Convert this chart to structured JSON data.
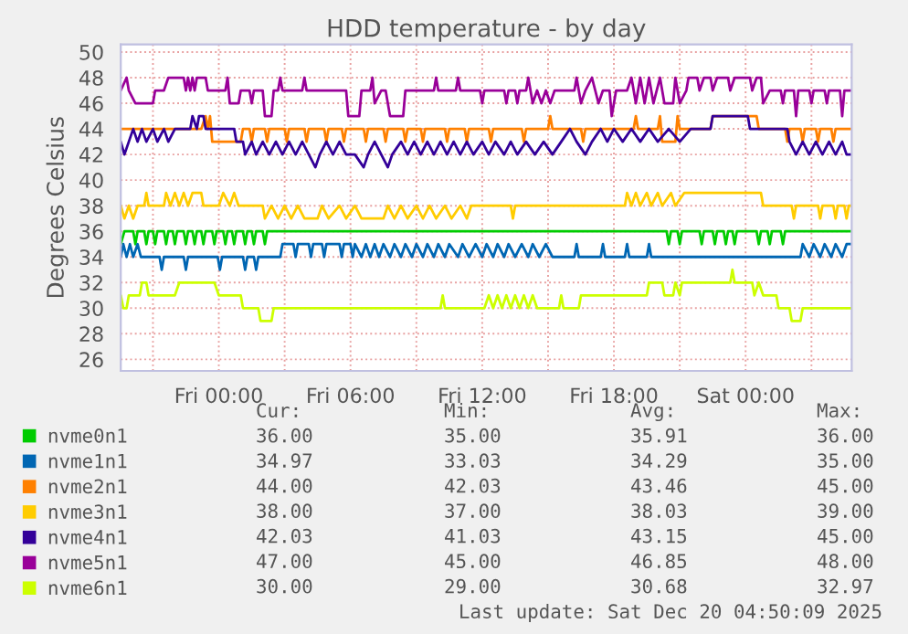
{
  "chart_data": {
    "type": "line",
    "title": "HDD temperature - by day",
    "ylabel": "Degrees Celsius",
    "xlim": [
      "2025-12-18T19:32",
      "2025-12-20T04:50"
    ],
    "ylim": [
      25.1,
      50.6
    ],
    "xticks": [
      {
        "value": "2025-12-18T21:00",
        "label": null
      },
      {
        "value": "2025-12-19T00:00",
        "label": "Fri 00:00"
      },
      {
        "value": "2025-12-19T03:00",
        "label": null
      },
      {
        "value": "2025-12-19T06:00",
        "label": "Fri 06:00"
      },
      {
        "value": "2025-12-19T09:00",
        "label": null
      },
      {
        "value": "2025-12-19T12:00",
        "label": "Fri 12:00"
      },
      {
        "value": "2025-12-19T15:00",
        "label": null
      },
      {
        "value": "2025-12-19T18:00",
        "label": "Fri 18:00"
      },
      {
        "value": "2025-12-19T21:00",
        "label": null
      },
      {
        "value": "2025-12-20T00:00",
        "label": "Sat 00:00"
      },
      {
        "value": "2025-12-20T03:00",
        "label": null
      }
    ],
    "yticks": [
      26,
      28,
      30,
      32,
      34,
      36,
      38,
      40,
      42,
      44,
      46,
      48,
      50
    ],
    "grid": true,
    "legend": "bottom",
    "marker": "none",
    "line_style": "solid",
    "series": [
      {
        "name": "nvme0n1",
        "color": "#00cc00",
        "x": [
          "2025-12-18T19:32",
          "2025-12-18T19:42",
          "2025-12-18T20:06",
          "2025-12-18T20:12",
          "2025-12-18T20:18",
          "2025-12-18T20:36",
          "2025-12-18T20:42",
          "2025-12-18T20:48",
          "2025-12-18T21:00",
          "2025-12-18T21:06",
          "2025-12-18T21:12",
          "2025-12-18T21:30",
          "2025-12-18T21:36",
          "2025-12-18T21:42",
          "2025-12-18T21:54",
          "2025-12-18T22:00",
          "2025-12-18T22:06",
          "2025-12-18T22:24",
          "2025-12-18T22:30",
          "2025-12-18T22:36",
          "2025-12-18T22:48",
          "2025-12-18T22:54",
          "2025-12-18T23:00",
          "2025-12-18T23:12",
          "2025-12-18T23:18",
          "2025-12-18T23:24",
          "2025-12-18T23:42",
          "2025-12-18T23:48",
          "2025-12-18T23:54",
          "2025-12-19T00:12",
          "2025-12-19T00:18",
          "2025-12-19T00:24",
          "2025-12-19T00:36",
          "2025-12-19T00:42",
          "2025-12-19T00:48",
          "2025-12-19T01:06",
          "2025-12-19T01:12",
          "2025-12-19T01:18",
          "2025-12-19T01:30",
          "2025-12-19T01:36",
          "2025-12-19T01:42",
          "2025-12-19T02:00",
          "2025-12-19T02:06",
          "2025-12-19T02:12",
          "2025-12-19T20:24",
          "2025-12-19T20:30",
          "2025-12-19T20:36",
          "2025-12-19T20:54",
          "2025-12-19T21:00",
          "2025-12-19T21:06",
          "2025-12-19T21:54",
          "2025-12-19T22:00",
          "2025-12-19T22:06",
          "2025-12-19T22:30",
          "2025-12-19T22:36",
          "2025-12-19T22:42",
          "2025-12-19T23:00",
          "2025-12-19T23:06",
          "2025-12-19T23:12",
          "2025-12-19T23:24",
          "2025-12-19T23:30",
          "2025-12-19T23:36",
          "2025-12-20T00:30",
          "2025-12-20T00:36",
          "2025-12-20T00:42",
          "2025-12-20T01:00",
          "2025-12-20T01:06",
          "2025-12-20T01:12",
          "2025-12-20T01:36",
          "2025-12-20T01:42",
          "2025-12-20T01:48",
          "2025-12-20T04:50"
        ],
        "values": [
          35,
          36,
          36,
          35,
          36,
          36,
          35,
          36,
          36,
          35,
          36,
          36,
          35,
          36,
          36,
          35,
          36,
          36,
          35,
          36,
          36,
          35,
          36,
          36,
          35,
          36,
          36,
          35,
          36,
          36,
          35,
          36,
          36,
          35,
          36,
          36,
          35,
          36,
          36,
          35,
          36,
          36,
          35,
          36,
          36,
          35,
          36,
          36,
          35,
          36,
          36,
          35,
          36,
          36,
          35,
          36,
          36,
          35,
          36,
          36,
          35,
          36,
          36,
          35,
          36,
          36,
          35,
          36,
          36,
          35,
          36,
          36
        ]
      },
      {
        "name": "nvme1n1",
        "color": "#0066b3",
        "x": [
          "2025-12-18T19:32",
          "2025-12-18T19:39",
          "2025-12-18T19:48",
          "2025-12-18T19:57",
          "2025-12-18T20:06",
          "2025-12-18T20:18",
          "2025-12-18T20:27",
          "2025-12-18T21:18",
          "2025-12-18T21:24",
          "2025-12-18T21:30",
          "2025-12-18T22:24",
          "2025-12-18T22:30",
          "2025-12-18T22:36",
          "2025-12-18T23:57",
          "2025-12-19T00:03",
          "2025-12-19T00:09",
          "2025-12-19T01:06",
          "2025-12-19T01:12",
          "2025-12-19T01:18",
          "2025-12-19T01:36",
          "2025-12-19T01:42",
          "2025-12-19T01:48",
          "2025-12-19T02:48",
          "2025-12-19T02:54",
          "2025-12-19T03:24",
          "2025-12-19T03:30",
          "2025-12-19T03:36",
          "2025-12-19T04:06",
          "2025-12-19T04:12",
          "2025-12-19T04:18",
          "2025-12-19T04:42",
          "2025-12-19T04:48",
          "2025-12-19T04:54",
          "2025-12-19T05:30",
          "2025-12-19T05:36",
          "2025-12-19T05:42",
          "2025-12-19T06:00",
          "2025-12-19T06:06",
          "2025-12-19T06:12",
          "2025-12-19T06:30",
          "2025-12-19T06:42",
          "2025-12-19T06:54",
          "2025-12-19T07:06",
          "2025-12-19T07:18",
          "2025-12-19T07:30",
          "2025-12-19T07:48",
          "2025-12-19T08:00",
          "2025-12-19T08:18",
          "2025-12-19T08:30",
          "2025-12-19T08:48",
          "2025-12-19T09:00",
          "2025-12-19T09:18",
          "2025-12-19T09:30",
          "2025-12-19T09:48",
          "2025-12-19T10:00",
          "2025-12-19T10:18",
          "2025-12-19T10:30",
          "2025-12-19T10:54",
          "2025-12-19T11:06",
          "2025-12-19T11:24",
          "2025-12-19T11:42",
          "2025-12-19T12:00",
          "2025-12-19T12:12",
          "2025-12-19T12:30",
          "2025-12-19T12:42",
          "2025-12-19T13:00",
          "2025-12-19T13:12",
          "2025-12-19T13:30",
          "2025-12-19T13:48",
          "2025-12-19T14:06",
          "2025-12-19T14:18",
          "2025-12-19T14:36",
          "2025-12-19T14:54",
          "2025-12-19T15:12",
          "2025-12-19T16:12",
          "2025-12-19T16:18",
          "2025-12-19T16:24",
          "2025-12-19T17:24",
          "2025-12-19T17:30",
          "2025-12-19T17:36",
          "2025-12-19T18:30",
          "2025-12-19T18:36",
          "2025-12-19T18:42",
          "2025-12-19T19:30",
          "2025-12-19T19:36",
          "2025-12-19T19:42",
          "2025-12-20T02:30",
          "2025-12-20T02:36",
          "2025-12-20T02:54",
          "2025-12-20T03:06",
          "2025-12-20T03:24",
          "2025-12-20T03:36",
          "2025-12-20T03:54",
          "2025-12-20T04:06",
          "2025-12-20T04:24",
          "2025-12-20T04:36",
          "2025-12-20T04:50"
        ],
        "values": [
          34,
          35,
          34,
          35,
          34,
          35,
          34,
          34,
          33,
          34,
          34,
          33,
          34,
          34,
          33,
          34,
          34,
          33,
          34,
          34,
          33,
          34,
          34,
          35,
          35,
          34,
          35,
          35,
          34,
          35,
          35,
          34,
          35,
          35,
          34,
          35,
          35,
          34,
          35,
          34,
          35,
          34,
          35,
          34,
          35,
          34,
          35,
          34,
          35,
          34,
          35,
          34,
          35,
          34,
          35,
          34,
          35,
          34,
          35,
          34,
          35,
          34,
          35,
          34,
          35,
          34,
          35,
          34,
          35,
          34,
          35,
          34,
          35,
          34,
          34,
          35,
          34,
          34,
          35,
          34,
          34,
          35,
          34,
          34,
          35,
          34,
          34,
          35,
          34,
          35,
          34,
          35,
          34,
          35,
          34,
          35,
          35
        ]
      },
      {
        "name": "nvme2n1",
        "color": "#ff8000",
        "x": [
          "2025-12-18T19:32",
          "2025-12-18T23:12",
          "2025-12-18T23:24",
          "2025-12-18T23:30",
          "2025-12-18T23:36",
          "2025-12-18T23:42",
          "2025-12-19T01:00",
          "2025-12-19T01:06",
          "2025-12-19T01:24",
          "2025-12-19T01:30",
          "2025-12-19T01:36",
          "2025-12-19T02:06",
          "2025-12-19T02:12",
          "2025-12-19T02:18",
          "2025-12-19T03:00",
          "2025-12-19T03:06",
          "2025-12-19T03:12",
          "2025-12-19T03:54",
          "2025-12-19T04:00",
          "2025-12-19T04:06",
          "2025-12-19T04:48",
          "2025-12-19T04:54",
          "2025-12-19T05:00",
          "2025-12-19T05:36",
          "2025-12-19T05:42",
          "2025-12-19T05:48",
          "2025-12-19T06:36",
          "2025-12-19T06:42",
          "2025-12-19T06:48",
          "2025-12-19T07:30",
          "2025-12-19T07:36",
          "2025-12-19T07:42",
          "2025-12-19T08:24",
          "2025-12-19T08:30",
          "2025-12-19T08:36",
          "2025-12-19T09:12",
          "2025-12-19T09:18",
          "2025-12-19T09:24",
          "2025-12-19T10:18",
          "2025-12-19T10:24",
          "2025-12-19T10:30",
          "2025-12-19T11:12",
          "2025-12-19T11:18",
          "2025-12-19T11:24",
          "2025-12-19T12:18",
          "2025-12-19T12:24",
          "2025-12-19T12:30",
          "2025-12-19T13:48",
          "2025-12-19T13:54",
          "2025-12-19T14:00",
          "2025-12-19T15:00",
          "2025-12-19T15:06",
          "2025-12-19T15:12",
          "2025-12-19T16:30",
          "2025-12-19T16:36",
          "2025-12-19T16:42",
          "2025-12-19T18:54",
          "2025-12-19T19:00",
          "2025-12-19T19:06",
          "2025-12-19T20:00",
          "2025-12-19T20:06",
          "2025-12-19T20:12",
          "2025-12-19T20:48",
          "2025-12-19T20:54",
          "2025-12-19T21:00",
          "2025-12-19T22:24",
          "2025-12-19T22:30",
          "2025-12-20T00:30",
          "2025-12-20T00:36",
          "2025-12-20T01:48",
          "2025-12-20T01:54",
          "2025-12-20T02:00",
          "2025-12-20T02:30",
          "2025-12-20T02:36",
          "2025-12-20T02:42",
          "2025-12-20T03:12",
          "2025-12-20T03:18",
          "2025-12-20T03:24",
          "2025-12-20T03:54",
          "2025-12-20T04:00",
          "2025-12-20T04:06",
          "2025-12-20T04:50"
        ],
        "values": [
          44,
          44,
          45,
          44,
          45,
          43,
          43,
          44,
          44,
          43,
          44,
          44,
          43,
          44,
          44,
          43,
          44,
          44,
          43,
          44,
          44,
          43,
          44,
          44,
          43,
          44,
          44,
          43,
          44,
          44,
          43,
          44,
          44,
          43,
          44,
          44,
          43,
          44,
          44,
          43,
          44,
          44,
          43,
          44,
          44,
          43,
          44,
          44,
          43,
          44,
          44,
          45,
          44,
          44,
          43,
          44,
          44,
          45,
          44,
          44,
          45,
          43,
          43,
          45,
          44,
          44,
          45,
          45,
          44,
          44,
          43,
          44,
          44,
          43,
          44,
          44,
          43,
          44,
          44,
          43,
          44,
          44
        ]
      },
      {
        "name": "nvme3n1",
        "color": "#ffcc00",
        "x": [
          "2025-12-18T19:32",
          "2025-12-18T19:42",
          "2025-12-18T19:54",
          "2025-12-18T20:06",
          "2025-12-18T20:18",
          "2025-12-18T20:36",
          "2025-12-18T20:42",
          "2025-12-18T20:48",
          "2025-12-18T21:30",
          "2025-12-18T21:36",
          "2025-12-18T21:48",
          "2025-12-18T22:00",
          "2025-12-18T22:12",
          "2025-12-18T22:24",
          "2025-12-18T22:36",
          "2025-12-18T22:48",
          "2025-12-18T23:12",
          "2025-12-18T23:18",
          "2025-12-19T00:00",
          "2025-12-19T00:12",
          "2025-12-19T00:30",
          "2025-12-19T00:42",
          "2025-12-19T00:54",
          "2025-12-19T02:00",
          "2025-12-19T02:06",
          "2025-12-19T02:24",
          "2025-12-19T02:42",
          "2025-12-19T03:00",
          "2025-12-19T03:18",
          "2025-12-19T03:36",
          "2025-12-19T03:54",
          "2025-12-19T04:30",
          "2025-12-19T04:42",
          "2025-12-19T05:00",
          "2025-12-19T05:30",
          "2025-12-19T05:48",
          "2025-12-19T06:12",
          "2025-12-19T06:30",
          "2025-12-19T07:30",
          "2025-12-19T07:42",
          "2025-12-19T08:00",
          "2025-12-19T08:18",
          "2025-12-19T08:36",
          "2025-12-19T09:00",
          "2025-12-19T09:18",
          "2025-12-19T09:36",
          "2025-12-19T09:54",
          "2025-12-19T10:18",
          "2025-12-19T10:36",
          "2025-12-19T11:00",
          "2025-12-19T11:18",
          "2025-12-19T11:30",
          "2025-12-19T13:18",
          "2025-12-19T13:24",
          "2025-12-19T13:30",
          "2025-12-19T18:30",
          "2025-12-19T18:36",
          "2025-12-19T18:48",
          "2025-12-19T19:00",
          "2025-12-19T19:12",
          "2025-12-19T19:30",
          "2025-12-19T19:42",
          "2025-12-19T20:00",
          "2025-12-19T20:12",
          "2025-12-19T20:36",
          "2025-12-19T20:48",
          "2025-12-19T21:12",
          "2025-12-20T00:42",
          "2025-12-20T00:48",
          "2025-12-20T02:06",
          "2025-12-20T02:12",
          "2025-12-20T02:18",
          "2025-12-20T03:18",
          "2025-12-20T03:24",
          "2025-12-20T03:30",
          "2025-12-20T04:00",
          "2025-12-20T04:06",
          "2025-12-20T04:12",
          "2025-12-20T04:30",
          "2025-12-20T04:36",
          "2025-12-20T04:42",
          "2025-12-20T04:50"
        ],
        "values": [
          38,
          37,
          38,
          37,
          38,
          38,
          39,
          38,
          38,
          39,
          38,
          39,
          38,
          39,
          38,
          39,
          39,
          38,
          38,
          39,
          38,
          39,
          38,
          38,
          37,
          38,
          37,
          38,
          37,
          38,
          37,
          37,
          38,
          37,
          38,
          37,
          38,
          37,
          37,
          38,
          37,
          38,
          37,
          38,
          37,
          38,
          37,
          38,
          37,
          38,
          37,
          38,
          38,
          37,
          38,
          38,
          39,
          38,
          39,
          38,
          39,
          38,
          39,
          38,
          39,
          38,
          39,
          39,
          38,
          38,
          37,
          38,
          38,
          37,
          38,
          38,
          37,
          38,
          38,
          37,
          38,
          38
        ]
      },
      {
        "name": "nvme4n1",
        "color": "#330099",
        "x": [
          "2025-12-18T19:32",
          "2025-12-18T19:42",
          "2025-12-18T19:54",
          "2025-12-18T20:06",
          "2025-12-18T20:18",
          "2025-12-18T20:30",
          "2025-12-18T20:42",
          "2025-12-18T21:00",
          "2025-12-18T21:12",
          "2025-12-18T21:30",
          "2025-12-18T21:42",
          "2025-12-18T22:00",
          "2025-12-18T22:42",
          "2025-12-18T22:48",
          "2025-12-18T23:00",
          "2025-12-18T23:06",
          "2025-12-18T23:18",
          "2025-12-18T23:24",
          "2025-12-19T00:42",
          "2025-12-19T00:48",
          "2025-12-19T01:06",
          "2025-12-19T01:12",
          "2025-12-19T01:30",
          "2025-12-19T01:42",
          "2025-12-19T02:00",
          "2025-12-19T02:18",
          "2025-12-19T02:36",
          "2025-12-19T02:54",
          "2025-12-19T03:12",
          "2025-12-19T03:30",
          "2025-12-19T03:48",
          "2025-12-19T04:06",
          "2025-12-19T04:24",
          "2025-12-19T04:36",
          "2025-12-19T04:54",
          "2025-12-19T05:12",
          "2025-12-19T05:30",
          "2025-12-19T05:48",
          "2025-12-19T06:12",
          "2025-12-19T06:36",
          "2025-12-19T06:48",
          "2025-12-19T07:06",
          "2025-12-19T07:24",
          "2025-12-19T07:42",
          "2025-12-19T07:54",
          "2025-12-19T08:18",
          "2025-12-19T08:36",
          "2025-12-19T08:54",
          "2025-12-19T09:12",
          "2025-12-19T09:30",
          "2025-12-19T09:48",
          "2025-12-19T10:06",
          "2025-12-19T10:24",
          "2025-12-19T10:42",
          "2025-12-19T11:00",
          "2025-12-19T11:18",
          "2025-12-19T11:36",
          "2025-12-19T12:00",
          "2025-12-19T12:18",
          "2025-12-19T12:36",
          "2025-12-19T13:00",
          "2025-12-19T13:18",
          "2025-12-19T13:36",
          "2025-12-19T14:00",
          "2025-12-19T14:24",
          "2025-12-19T14:48",
          "2025-12-19T15:12",
          "2025-12-19T15:36",
          "2025-12-19T16:00",
          "2025-12-19T16:18",
          "2025-12-19T16:42",
          "2025-12-19T17:00",
          "2025-12-19T17:24",
          "2025-12-19T17:42",
          "2025-12-19T18:00",
          "2025-12-19T18:24",
          "2025-12-19T18:48",
          "2025-12-19T19:12",
          "2025-12-19T19:36",
          "2025-12-19T20:00",
          "2025-12-19T20:30",
          "2025-12-19T21:00",
          "2025-12-19T21:30",
          "2025-12-19T22:24",
          "2025-12-19T22:30",
          "2025-12-20T00:06",
          "2025-12-20T00:12",
          "2025-12-20T01:54",
          "2025-12-20T02:00",
          "2025-12-20T02:18",
          "2025-12-20T02:36",
          "2025-12-20T02:54",
          "2025-12-20T03:12",
          "2025-12-20T03:30",
          "2025-12-20T03:48",
          "2025-12-20T04:06",
          "2025-12-20T04:24",
          "2025-12-20T04:36",
          "2025-12-20T04:50"
        ],
        "values": [
          43,
          42,
          43,
          44,
          43,
          44,
          43,
          44,
          43,
          44,
          43,
          44,
          44,
          45,
          44,
          45,
          45,
          44,
          44,
          43,
          43,
          42,
          43,
          42,
          43,
          42,
          43,
          42,
          43,
          42,
          43,
          42,
          41,
          42,
          43,
          42,
          43,
          42,
          42,
          41,
          42,
          43,
          42,
          41,
          42,
          43,
          42,
          43,
          42,
          43,
          42,
          43,
          42,
          43,
          42,
          43,
          42,
          43,
          42,
          43,
          42,
          43,
          42,
          43,
          42,
          43,
          42,
          43,
          44,
          43,
          42,
          43,
          44,
          43,
          44,
          43,
          44,
          43,
          44,
          43,
          44,
          43,
          44,
          44,
          45,
          45,
          44,
          44,
          43,
          42,
          43,
          42,
          43,
          42,
          43,
          42,
          43,
          42,
          42
        ]
      },
      {
        "name": "nvme5n1",
        "color": "#990099",
        "x": [
          "2025-12-18T19:32",
          "2025-12-18T19:48",
          "2025-12-18T19:54",
          "2025-12-18T20:12",
          "2025-12-18T21:00",
          "2025-12-18T21:06",
          "2025-12-18T21:30",
          "2025-12-18T21:42",
          "2025-12-18T22:24",
          "2025-12-18T22:30",
          "2025-12-18T22:36",
          "2025-12-18T22:42",
          "2025-12-18T22:48",
          "2025-12-18T22:54",
          "2025-12-18T23:00",
          "2025-12-18T23:24",
          "2025-12-18T23:30",
          "2025-12-19T00:18",
          "2025-12-19T00:24",
          "2025-12-19T00:30",
          "2025-12-19T00:54",
          "2025-12-19T01:00",
          "2025-12-19T01:24",
          "2025-12-19T01:30",
          "2025-12-19T01:36",
          "2025-12-19T02:00",
          "2025-12-19T02:06",
          "2025-12-19T02:24",
          "2025-12-19T02:30",
          "2025-12-19T02:42",
          "2025-12-19T02:48",
          "2025-12-19T02:54",
          "2025-12-19T03:48",
          "2025-12-19T03:54",
          "2025-12-19T04:00",
          "2025-12-19T05:48",
          "2025-12-19T05:54",
          "2025-12-19T06:24",
          "2025-12-19T06:30",
          "2025-12-19T06:54",
          "2025-12-19T07:00",
          "2025-12-19T07:06",
          "2025-12-19T07:24",
          "2025-12-19T07:36",
          "2025-12-19T07:48",
          "2025-12-19T08:24",
          "2025-12-19T08:30",
          "2025-12-19T09:48",
          "2025-12-19T09:54",
          "2025-12-19T10:00",
          "2025-12-19T10:48",
          "2025-12-19T10:54",
          "2025-12-19T11:00",
          "2025-12-19T11:54",
          "2025-12-19T12:00",
          "2025-12-19T12:06",
          "2025-12-19T13:00",
          "2025-12-19T13:06",
          "2025-12-19T13:12",
          "2025-12-19T13:30",
          "2025-12-19T13:36",
          "2025-12-19T13:42",
          "2025-12-19T14:00",
          "2025-12-19T14:06",
          "2025-12-19T14:18",
          "2025-12-19T14:30",
          "2025-12-19T14:42",
          "2025-12-19T14:54",
          "2025-12-19T15:06",
          "2025-12-19T15:18",
          "2025-12-19T16:12",
          "2025-12-19T16:18",
          "2025-12-19T16:30",
          "2025-12-19T16:42",
          "2025-12-19T17:00",
          "2025-12-19T17:18",
          "2025-12-19T17:30",
          "2025-12-19T17:48",
          "2025-12-19T17:54",
          "2025-12-19T18:06",
          "2025-12-19T18:36",
          "2025-12-19T18:48",
          "2025-12-19T19:00",
          "2025-12-19T19:12",
          "2025-12-19T19:24",
          "2025-12-19T19:36",
          "2025-12-19T19:48",
          "2025-12-19T20:06",
          "2025-12-19T20:18",
          "2025-12-19T20:42",
          "2025-12-19T20:48",
          "2025-12-19T21:00",
          "2025-12-19T21:18",
          "2025-12-19T21:24",
          "2025-12-19T21:48",
          "2025-12-19T21:54",
          "2025-12-19T22:06",
          "2025-12-19T22:24",
          "2025-12-19T22:30",
          "2025-12-19T22:42",
          "2025-12-19T23:12",
          "2025-12-19T23:18",
          "2025-12-19T23:30",
          "2025-12-20T00:12",
          "2025-12-20T00:18",
          "2025-12-20T00:30",
          "2025-12-20T00:42",
          "2025-12-20T00:48",
          "2025-12-20T01:06",
          "2025-12-20T01:36",
          "2025-12-20T01:42",
          "2025-12-20T01:48",
          "2025-12-20T02:12",
          "2025-12-20T02:18",
          "2025-12-20T02:24",
          "2025-12-20T02:54",
          "2025-12-20T03:00",
          "2025-12-20T03:06",
          "2025-12-20T03:36",
          "2025-12-20T03:42",
          "2025-12-20T03:48",
          "2025-12-20T04:18",
          "2025-12-20T04:24",
          "2025-12-20T04:30",
          "2025-12-20T04:50"
        ],
        "values": [
          47,
          48,
          47,
          46,
          46,
          47,
          47,
          48,
          48,
          47,
          48,
          47,
          48,
          47,
          48,
          48,
          47,
          47,
          48,
          46,
          46,
          47,
          47,
          46,
          47,
          47,
          45,
          45,
          47,
          47,
          48,
          47,
          47,
          48,
          47,
          47,
          45,
          45,
          47,
          47,
          48,
          46,
          47,
          47,
          45,
          45,
          47,
          47,
          48,
          47,
          47,
          48,
          47,
          47,
          46,
          47,
          47,
          46,
          47,
          47,
          46,
          47,
          47,
          48,
          46,
          47,
          46,
          47,
          46,
          47,
          47,
          48,
          46,
          47,
          48,
          46,
          47,
          47,
          45,
          47,
          47,
          48,
          46,
          48,
          46,
          48,
          46,
          48,
          46,
          46,
          48,
          46,
          47,
          48,
          48,
          47,
          48,
          48,
          47,
          48,
          48,
          47,
          48,
          48,
          47,
          48,
          48,
          46,
          47,
          47,
          46,
          47,
          47,
          45,
          47,
          47,
          46,
          47,
          47,
          46,
          47,
          47,
          45,
          47,
          47
        ]
      },
      {
        "name": "nvme6n1",
        "color": "#ccff00",
        "x": [
          "2025-12-18T19:32",
          "2025-12-18T19:39",
          "2025-12-18T19:48",
          "2025-12-18T19:54",
          "2025-12-18T20:24",
          "2025-12-18T20:30",
          "2025-12-18T20:42",
          "2025-12-18T20:48",
          "2025-12-18T22:00",
          "2025-12-18T22:12",
          "2025-12-18T23:48",
          "2025-12-19T00:00",
          "2025-12-19T01:00",
          "2025-12-19T01:06",
          "2025-12-19T01:48",
          "2025-12-19T01:54",
          "2025-12-19T02:24",
          "2025-12-19T02:30",
          "2025-12-19T10:06",
          "2025-12-19T10:12",
          "2025-12-19T10:18",
          "2025-12-19T12:06",
          "2025-12-19T12:18",
          "2025-12-19T12:30",
          "2025-12-19T12:42",
          "2025-12-19T12:54",
          "2025-12-19T13:06",
          "2025-12-19T13:18",
          "2025-12-19T13:30",
          "2025-12-19T13:42",
          "2025-12-19T13:54",
          "2025-12-19T14:06",
          "2025-12-19T14:18",
          "2025-12-19T14:30",
          "2025-12-19T15:30",
          "2025-12-19T15:36",
          "2025-12-19T15:42",
          "2025-12-19T16:24",
          "2025-12-19T16:30",
          "2025-12-19T19:30",
          "2025-12-19T19:36",
          "2025-12-19T20:12",
          "2025-12-19T20:18",
          "2025-12-19T20:42",
          "2025-12-19T20:48",
          "2025-12-19T21:00",
          "2025-12-19T21:06",
          "2025-12-19T23:18",
          "2025-12-19T23:24",
          "2025-12-19T23:30",
          "2025-12-20T00:18",
          "2025-12-20T00:24",
          "2025-12-20T00:36",
          "2025-12-20T00:48",
          "2025-12-20T01:24",
          "2025-12-20T01:30",
          "2025-12-20T02:00",
          "2025-12-20T02:06",
          "2025-12-20T02:30",
          "2025-12-20T02:36",
          "2025-12-20T04:50"
        ],
        "values": [
          31,
          30,
          30,
          31,
          31,
          32,
          32,
          31,
          31,
          32,
          32,
          31,
          31,
          30,
          30,
          29,
          29,
          30,
          30,
          31,
          30,
          30,
          31,
          30,
          31,
          30,
          31,
          30,
          31,
          30,
          31,
          30,
          31,
          30,
          30,
          31,
          30,
          30,
          31,
          31,
          32,
          32,
          31,
          31,
          32,
          31,
          32,
          32,
          33,
          32,
          32,
          31,
          32,
          31,
          31,
          30,
          30,
          29,
          29,
          30,
          30
        ]
      }
    ],
    "annotations": [
      "Cur:",
      "Min:",
      "Avg:",
      "Max:",
      "36.00",
      "35.00",
      "35.91",
      "36.00",
      "34.97",
      "33.03",
      "34.29",
      "35.00",
      "44.00",
      "42.03",
      "43.46",
      "45.00",
      "38.00",
      "37.00",
      "38.03",
      "39.00",
      "42.03",
      "41.03",
      "43.15",
      "45.00",
      "47.00",
      "45.00",
      "46.85",
      "48.00",
      "30.00",
      "29.00",
      "30.68",
      "32.97",
      "Last update: Sat Dec 20 04:50:09 2025"
    ]
  }
}
